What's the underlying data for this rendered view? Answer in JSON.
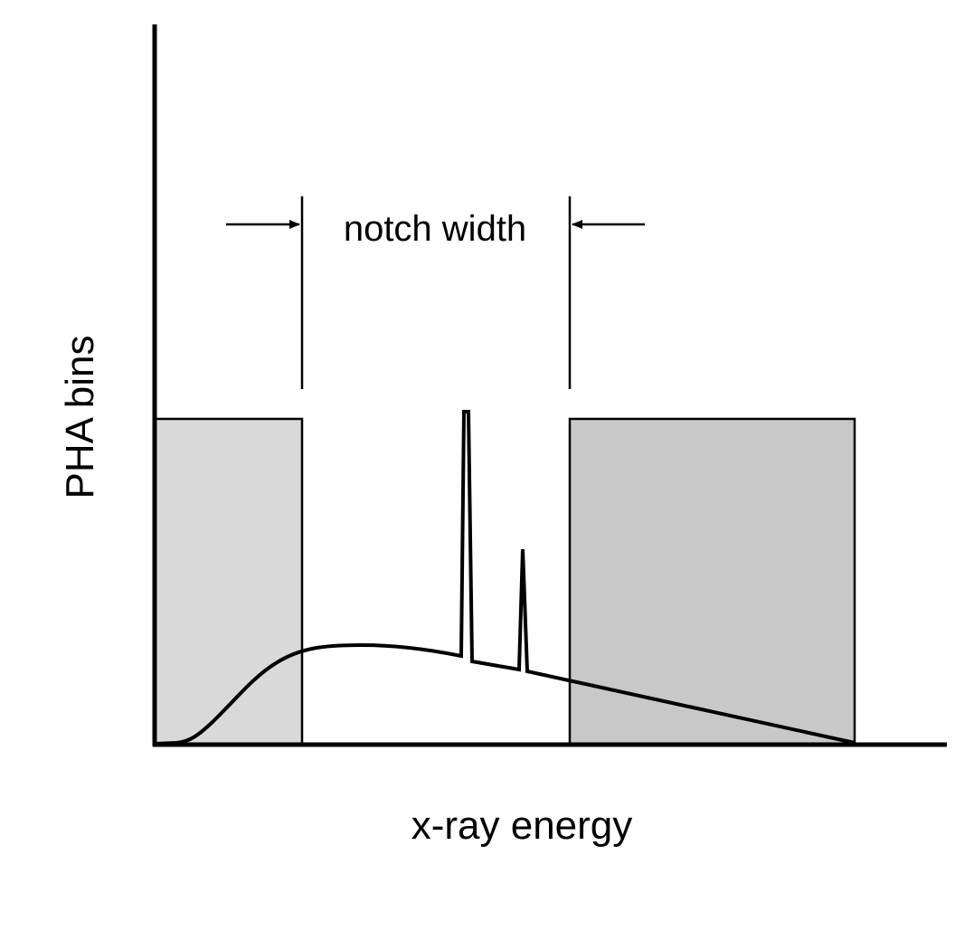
{
  "labels": {
    "y_axis": "PHA bins",
    "x_axis": "x-ray energy",
    "notch": "notch width"
  },
  "colors": {
    "ink": "#000000",
    "left_window_fill": "#d9d9d9",
    "right_window_fill": "#c8c8c8",
    "background": "#ffffff"
  }
}
